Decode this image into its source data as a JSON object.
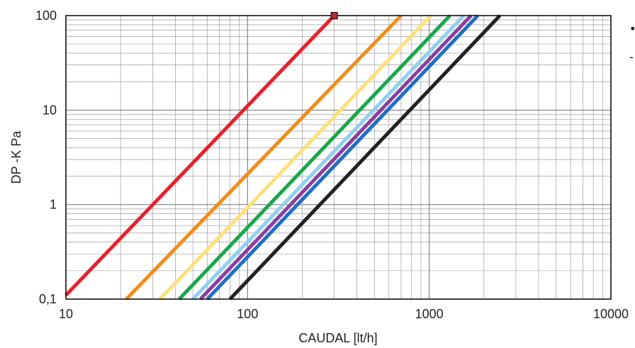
{
  "chart_data": {
    "type": "line",
    "title": "",
    "xlabel": "CAUDAL [lt/h]",
    "ylabel": "DP -K Pa",
    "xscale": "log",
    "yscale": "log",
    "xlim": [
      10,
      10000
    ],
    "ylim": [
      0.1,
      100
    ],
    "grid": true,
    "x_ticks": [
      "10",
      "100",
      "1000",
      "10000"
    ],
    "y_ticks": [
      "0,1",
      "1",
      "10",
      "100"
    ],
    "series": [
      {
        "color": "#e8202a",
        "x": [
          10,
          300
        ],
        "y": [
          0.11,
          100
        ]
      },
      {
        "color": "#f28c1c",
        "x": [
          21.5,
          700
        ],
        "y": [
          0.1,
          100
        ]
      },
      {
        "color": "#fde07a",
        "x": [
          33,
          1020
        ],
        "y": [
          0.1,
          100
        ]
      },
      {
        "color": "#1aa64a",
        "x": [
          42,
          1300
        ],
        "y": [
          0.1,
          100
        ]
      },
      {
        "color": "#8fd0f0",
        "x": [
          50,
          1550
        ],
        "y": [
          0.1,
          100
        ]
      },
      {
        "color": "#8a3fa0",
        "x": [
          55,
          1700
        ],
        "y": [
          0.1,
          100
        ]
      },
      {
        "color": "#1f6fc4",
        "x": [
          60,
          1850
        ],
        "y": [
          0.1,
          100
        ]
      },
      {
        "color": "#222222",
        "x": [
          80,
          2450
        ],
        "y": [
          0.1,
          100
        ]
      }
    ],
    "marker": {
      "x": 300,
      "y": 100,
      "color": "#c0262c"
    },
    "legend": {
      "placement": "right",
      "glyphs": [
        "•",
        "-"
      ]
    }
  }
}
